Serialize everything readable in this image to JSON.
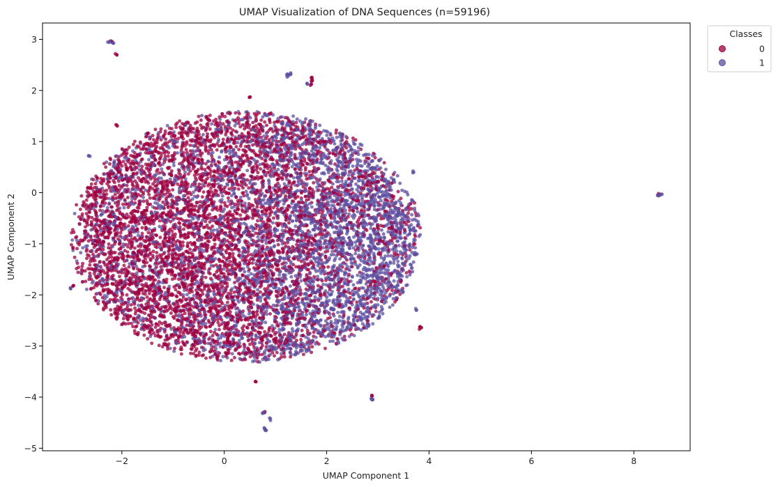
{
  "chart_data": {
    "type": "scatter",
    "title": "UMAP Visualization of DNA Sequences (n=59196)",
    "xlabel": "UMAP Component 1",
    "ylabel": "UMAP Component 2",
    "xlim": [
      -3.55,
      9.1
    ],
    "ylim": [
      -5.05,
      3.32
    ],
    "xticks": [
      -2,
      0,
      2,
      4,
      6,
      8
    ],
    "yticks": [
      -5,
      -4,
      -3,
      -2,
      -1,
      0,
      1,
      2,
      3
    ],
    "xtick_labels": [
      "−2",
      "0",
      "2",
      "4",
      "6",
      "8"
    ],
    "ytick_labels": [
      "−5",
      "−4",
      "−3",
      "−2",
      "−1",
      "0",
      "1",
      "2",
      "3"
    ],
    "grid": false,
    "legend": {
      "title": "Classes",
      "placement": "upper-right-outside"
    },
    "main_cluster": {
      "x_range": [
        -3.0,
        3.85
      ],
      "y_range": [
        -3.35,
        1.6
      ],
      "class_0_centroid": [
        -0.3,
        -1.0
      ],
      "class_1_centroid": [
        2.5,
        -1.4
      ]
    },
    "series": [
      {
        "name": "0",
        "color": "#9e0142",
        "outliers": [
          [
            -2.2,
            2.95
          ],
          [
            -2.1,
            2.7
          ],
          [
            1.7,
            2.25
          ],
          [
            1.72,
            2.2
          ],
          [
            1.7,
            2.12
          ],
          [
            -2.1,
            1.32
          ],
          [
            0.5,
            1.87
          ],
          [
            -2.95,
            -1.82
          ],
          [
            0.62,
            -3.7
          ],
          [
            2.88,
            -3.98
          ],
          [
            3.85,
            -2.64
          ],
          [
            3.82,
            -2.63
          ],
          [
            0.78,
            -4.3
          ],
          [
            8.5,
            -0.04
          ]
        ]
      },
      {
        "name": "1",
        "color": "#5e4fa2",
        "outliers": [
          [
            -2.25,
            2.94
          ],
          [
            -2.18,
            2.93
          ],
          [
            1.25,
            2.3
          ],
          [
            1.3,
            2.32
          ],
          [
            1.22,
            2.3
          ],
          [
            1.62,
            2.13
          ],
          [
            -3.0,
            -1.88
          ],
          [
            2.9,
            -4.05
          ],
          [
            2.87,
            -4.03
          ],
          [
            0.78,
            -4.6
          ],
          [
            0.8,
            -4.65
          ],
          [
            0.9,
            -4.42
          ],
          [
            0.75,
            -4.32
          ],
          [
            8.47,
            -0.05
          ],
          [
            8.53,
            -0.03
          ],
          [
            -2.65,
            0.72
          ],
          [
            3.7,
            0.4
          ],
          [
            3.75,
            -1.2
          ],
          [
            3.75,
            -2.3
          ]
        ]
      }
    ]
  }
}
